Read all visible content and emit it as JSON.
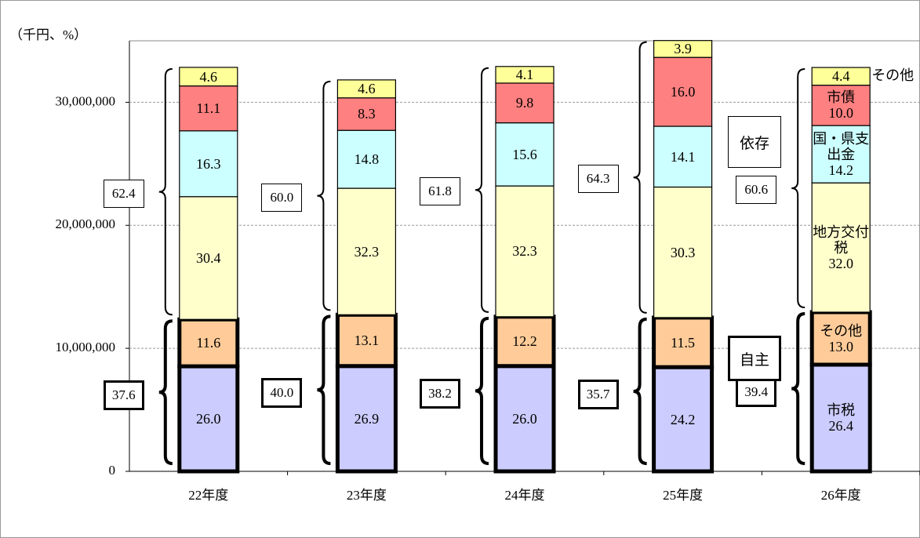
{
  "chart_data": {
    "type": "bar",
    "stacked": true,
    "y_axis_label": "（千円、%）",
    "categories": [
      "22年度",
      "23年度",
      "24年度",
      "25年度",
      "26年度"
    ],
    "ylim": [
      0,
      35000000
    ],
    "yticks": [
      0,
      {
        "value": 10000000,
        "label": "10,000,000"
      },
      {
        "value": 20000000,
        "label": "20,000,000"
      },
      {
        "value": 30000000,
        "label": "30,000,000"
      }
    ],
    "grid": true,
    "series": [
      {
        "name": "市税",
        "color": "#ccccff",
        "own": true,
        "values": [
          8540000,
          8560000,
          8560000,
          8470000,
          8670000
        ],
        "share_labels": [
          "26.0",
          "26.9",
          "26.0",
          "24.2",
          "26.4"
        ]
      },
      {
        "name": "その他",
        "color": "#ffcc99",
        "own": true,
        "values": [
          3810000,
          4170000,
          4010000,
          4030000,
          4270000
        ],
        "share_labels": [
          "11.6",
          "13.1",
          "12.2",
          "11.5",
          "13.0"
        ]
      },
      {
        "name": "地方交付税",
        "color": "#ffffcc",
        "own": false,
        "values": [
          9980000,
          10280000,
          10630000,
          10610000,
          10510000
        ],
        "share_labels": [
          "30.4",
          "32.3",
          "32.3",
          "30.3",
          "32.0"
        ]
      },
      {
        "name": "国・県支出金",
        "color": "#ccffff",
        "own": false,
        "values": [
          5350000,
          4710000,
          5130000,
          4940000,
          4660000
        ],
        "share_labels": [
          "16.3",
          "14.8",
          "15.6",
          "14.1",
          "14.2"
        ]
      },
      {
        "name": "市債",
        "color": "#ff8080",
        "own": false,
        "values": [
          3650000,
          2640000,
          3230000,
          5600000,
          3280000
        ],
        "share_labels": [
          "11.1",
          "8.3",
          "9.8",
          "16.0",
          "10.0"
        ]
      },
      {
        "name": "その他",
        "color": "#ffff99",
        "own": false,
        "values": [
          1510000,
          1460000,
          1350000,
          1370000,
          1440000
        ],
        "share_labels": [
          "4.6",
          "4.6",
          "4.1",
          "3.9",
          "4.4"
        ]
      }
    ],
    "dependent": {
      "label": "依存",
      "share_labels": [
        "62.4",
        "60.0",
        "61.8",
        "64.3",
        "60.6"
      ]
    },
    "own": {
      "label": "自主",
      "share_labels": [
        "37.6",
        "40.0",
        "38.2",
        "35.7",
        "39.4"
      ]
    }
  }
}
